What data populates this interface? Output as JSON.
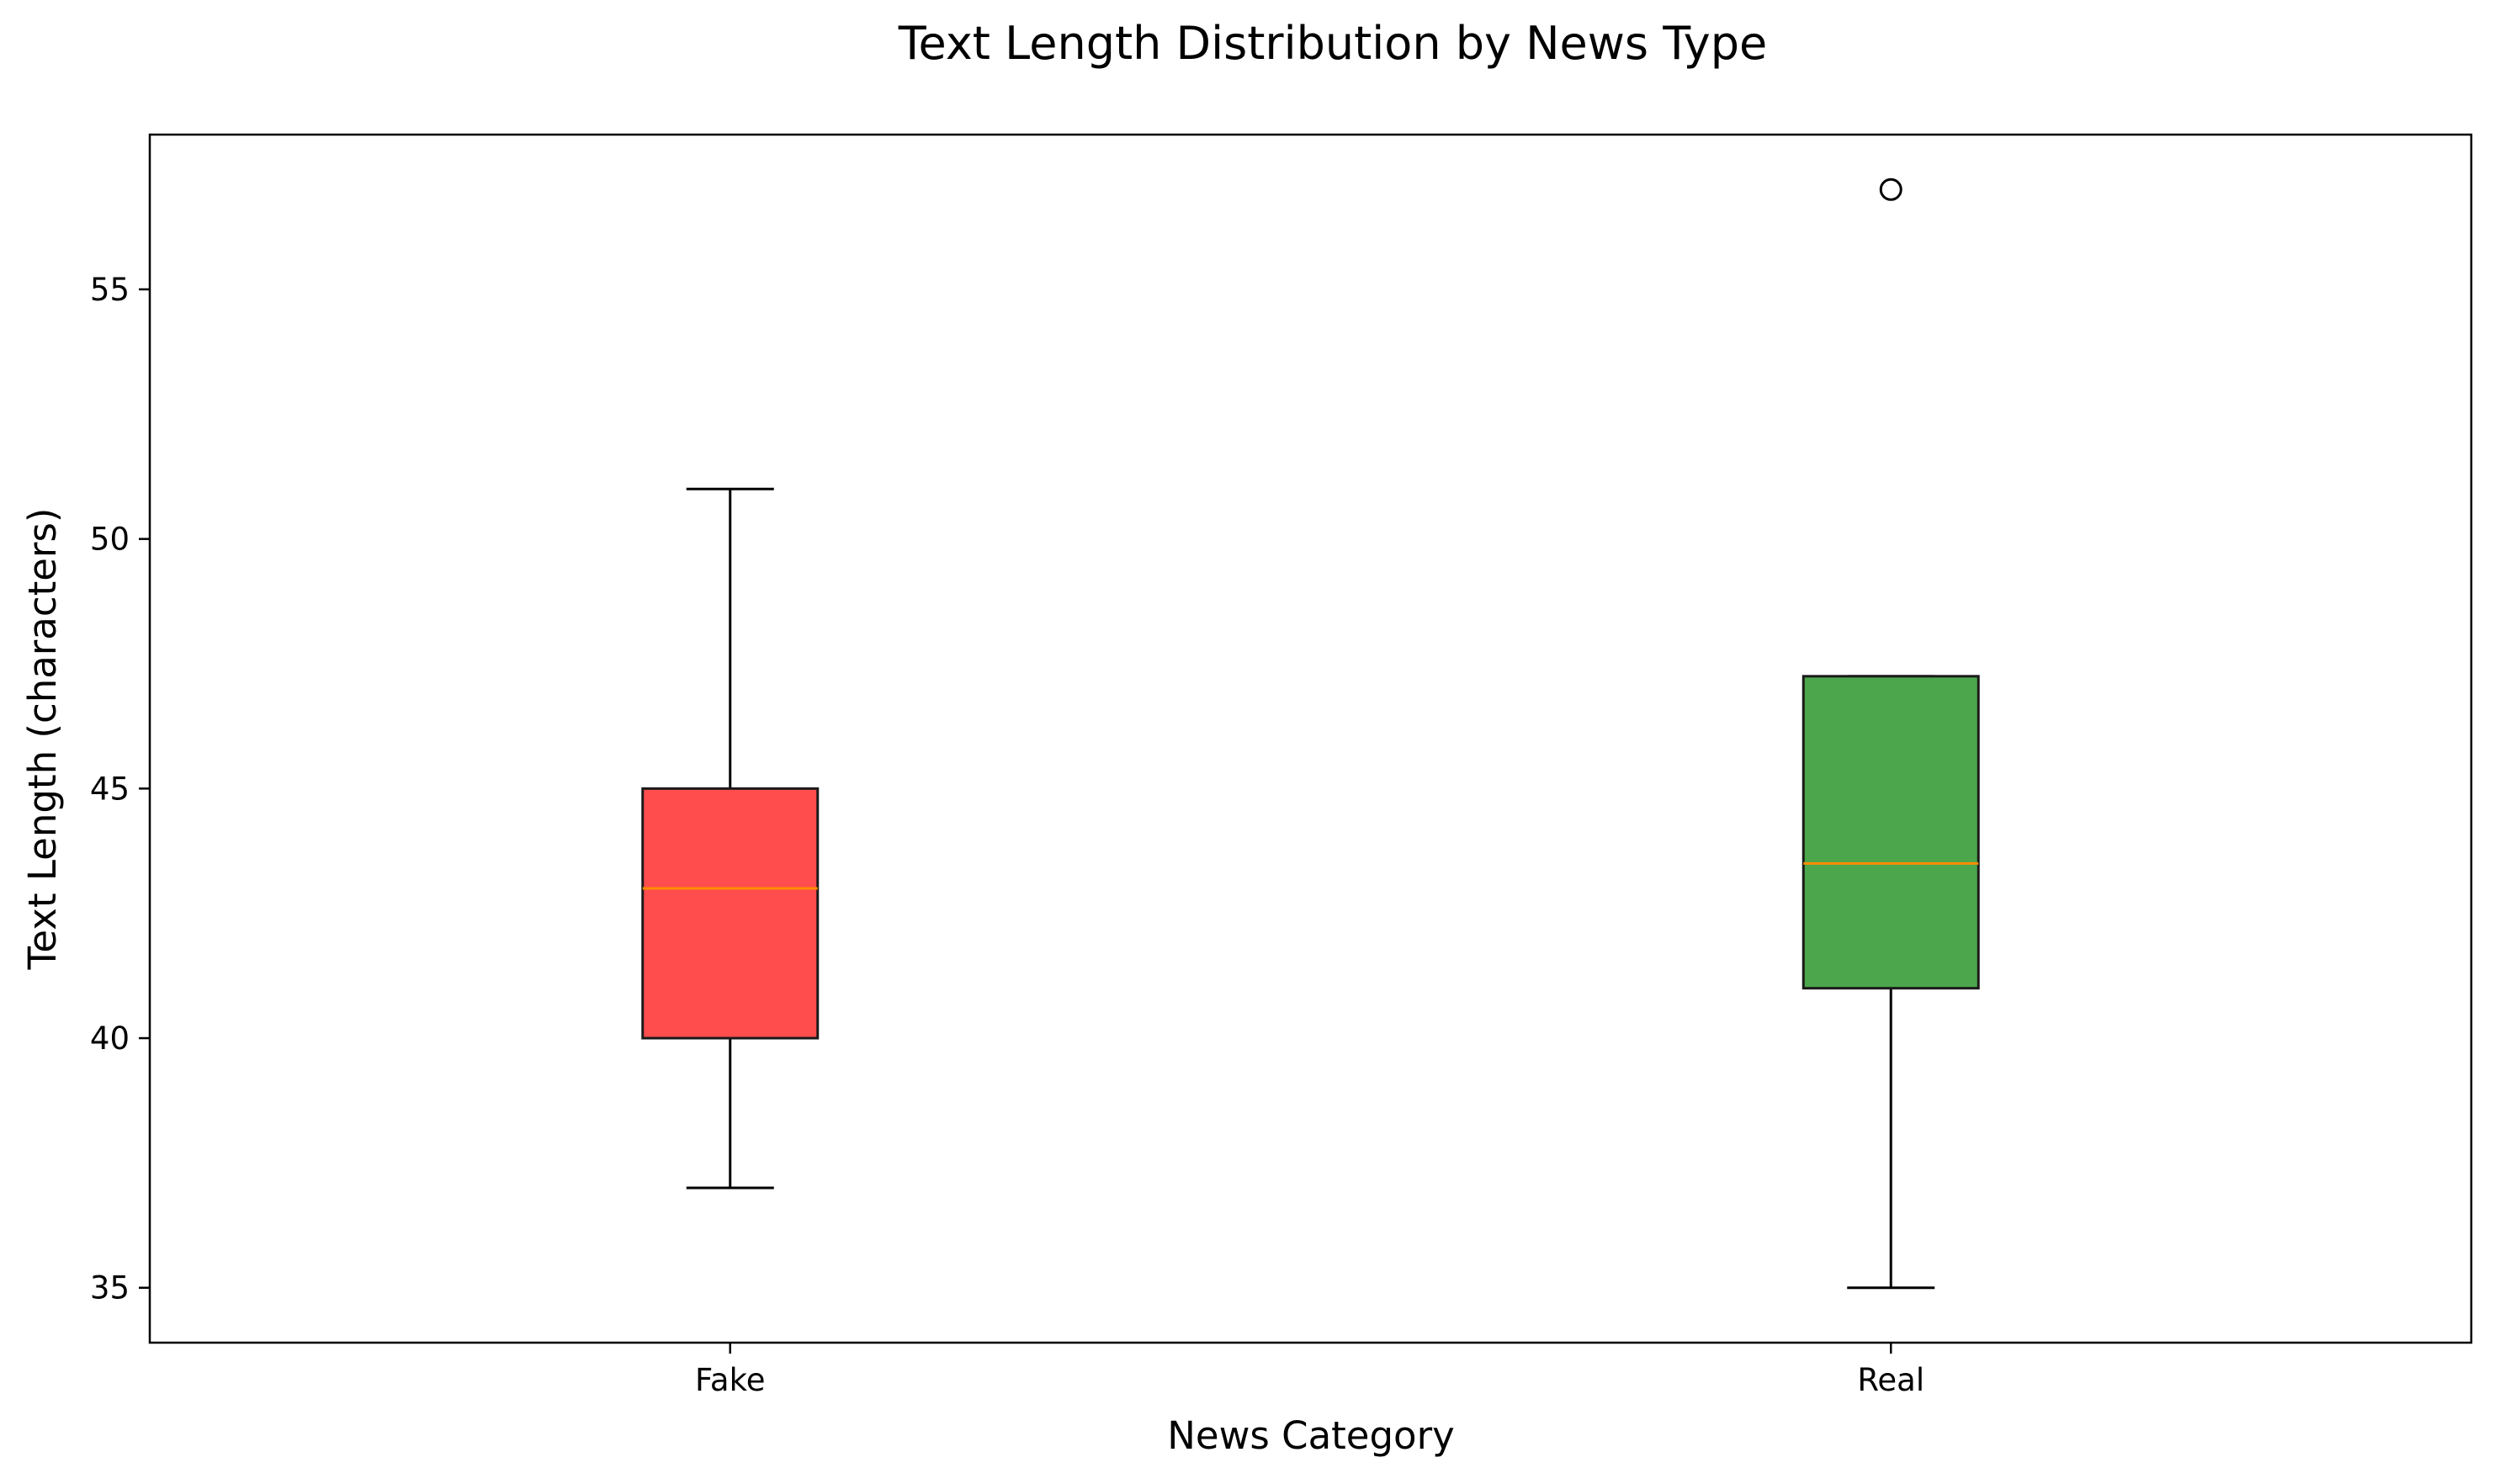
{
  "chart_data": {
    "type": "box",
    "title": "Text Length Distribution by News Type",
    "xlabel": "News Category",
    "ylabel": "Text Length (characters)",
    "categories": [
      "Fake",
      "Real"
    ],
    "ylim": [
      33.9,
      58.1
    ],
    "yticks": [
      35,
      40,
      45,
      50,
      55
    ],
    "grid": false,
    "boxes": [
      {
        "category": "Fake",
        "whisker_low": 37,
        "q1": 40,
        "median": 43,
        "q3": 45,
        "whisker_high": 51,
        "outliers": [],
        "color": "#ff4d4d"
      },
      {
        "category": "Real",
        "whisker_low": 35,
        "q1": 41,
        "median": 43.5,
        "q3": 47.25,
        "whisker_high": 47.25,
        "outliers": [
          57
        ],
        "color": "#4ca64c"
      }
    ],
    "median_color": "#ff8c00",
    "edge_color": "#000000"
  }
}
